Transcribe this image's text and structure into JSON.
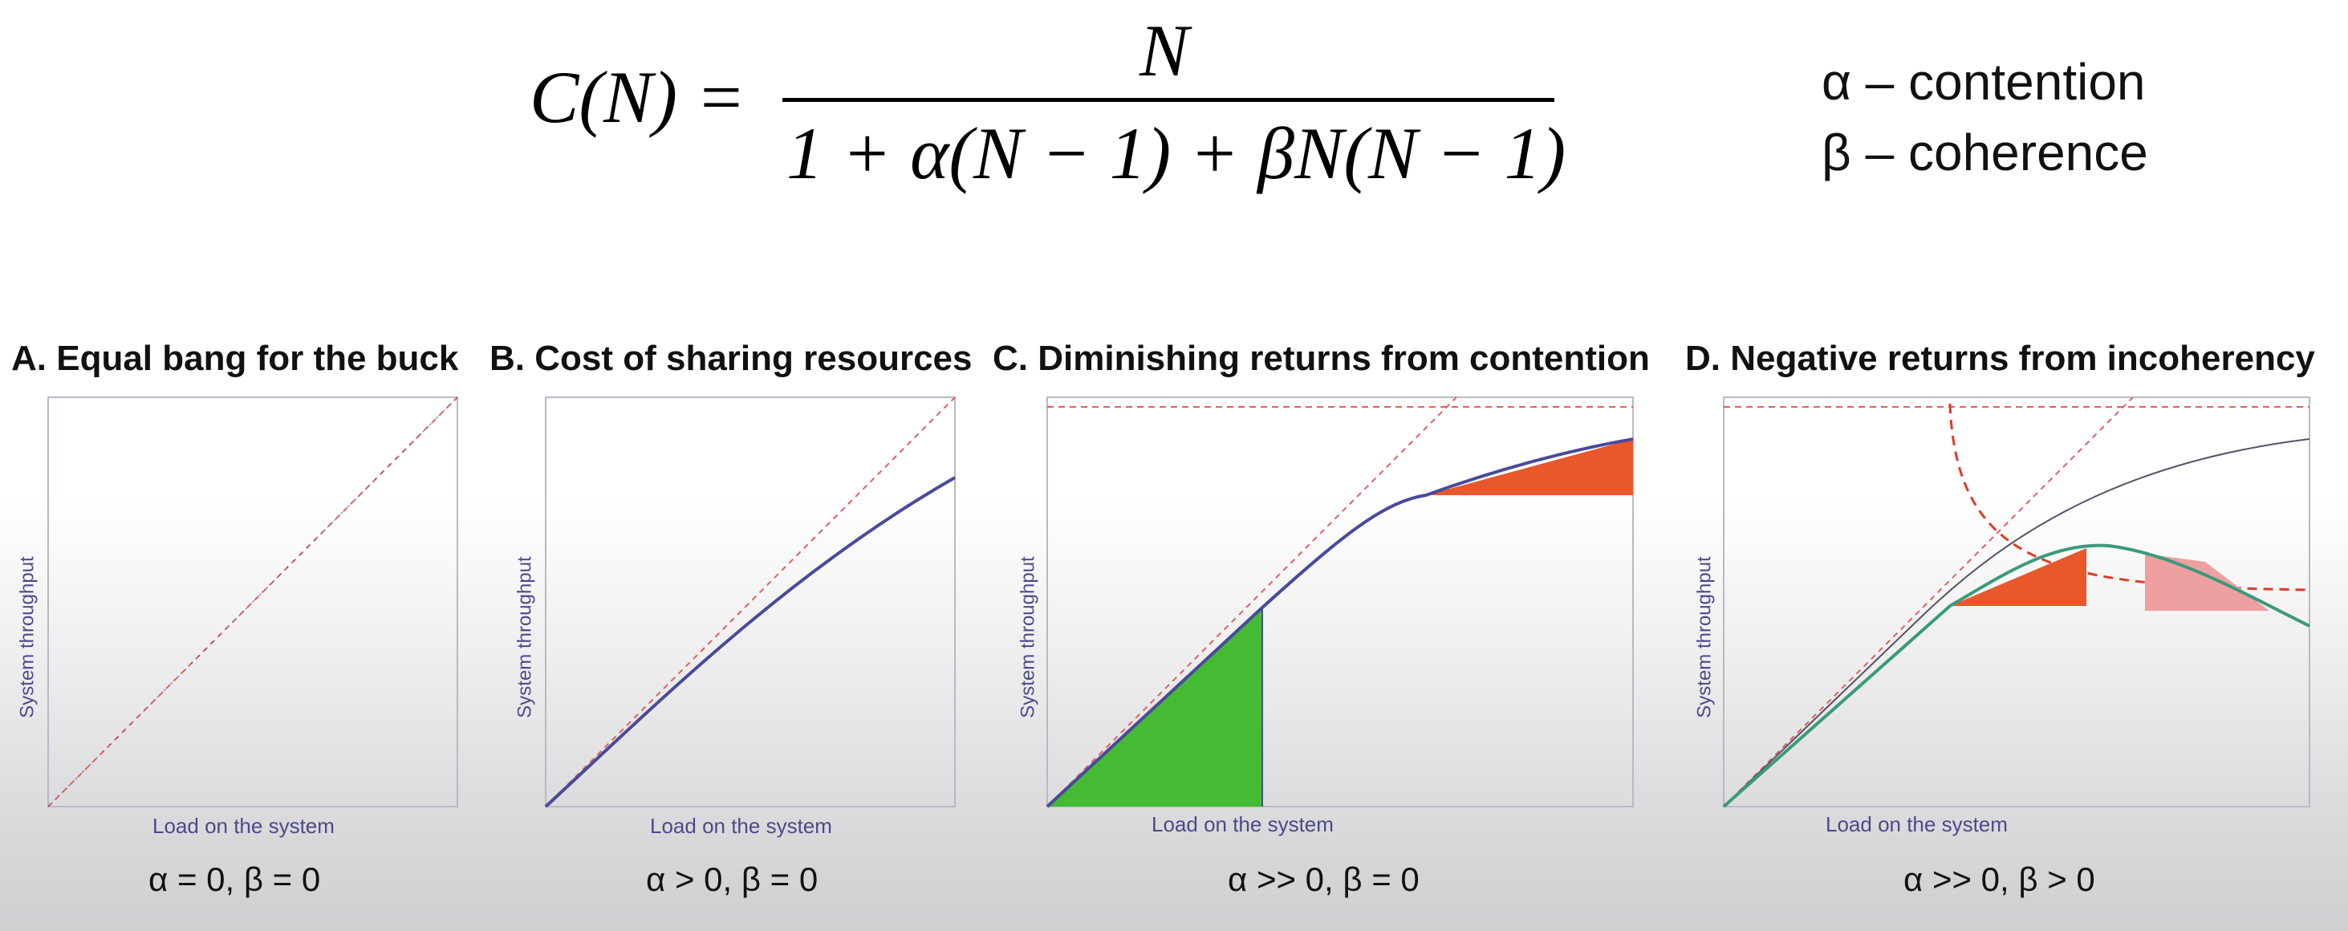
{
  "formula": {
    "lhs": "C(N) =",
    "numerator": "N",
    "denominator": "1 + α(N − 1) + βN(N − 1)"
  },
  "legend": {
    "alpha": "α – contention",
    "beta": "β – coherence"
  },
  "axis": {
    "ylabel": "System throughput",
    "xlabel": "Load on the system"
  },
  "panels": [
    {
      "title": "A. Equal bang for the buck",
      "condition": "α = 0, β = 0"
    },
    {
      "title": "B. Cost of sharing resources",
      "condition": "α > 0, β = 0"
    },
    {
      "title": "C. Diminishing returns from contention",
      "condition": "α >> 0, β = 0"
    },
    {
      "title": "D. Negative returns from incoherency",
      "condition": "α >> 0, β > 0"
    }
  ],
  "colors": {
    "curve": "#4a4a9a",
    "ideal_dashed": "#e06060",
    "contention_fill": "#e8582a",
    "linear_fill": "#44bb33",
    "coherence_fill": "#eea0a0",
    "usl_curve": "#3a9a7a"
  }
}
